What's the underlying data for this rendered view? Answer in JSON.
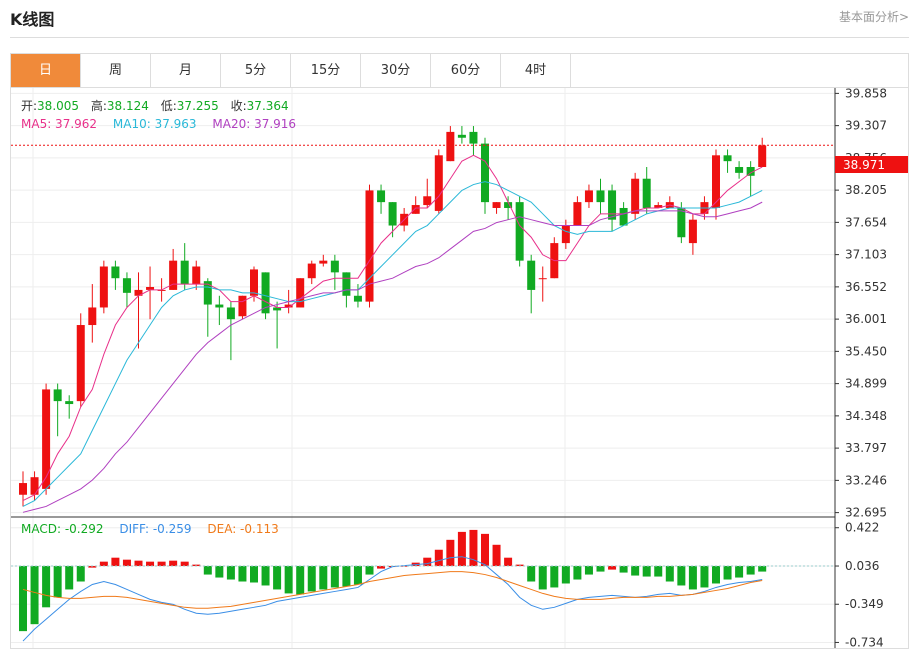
{
  "header": {
    "title": "K线图",
    "link": "基本面分析>"
  },
  "tabs": [
    "日",
    "周",
    "月",
    "5分",
    "15分",
    "30分",
    "60分",
    "4时"
  ],
  "active_tab": 0,
  "colors": {
    "up": "#ee1111",
    "down": "#11aa22",
    "ma5": "#e8308a",
    "ma10": "#2ab8d8",
    "ma20": "#b040c0",
    "diff": "#3a8ee6",
    "dea": "#f07a1a",
    "price_line": "#ee1111"
  },
  "ohlc_info": {
    "open_label": "开:",
    "open": "38.005",
    "high_label": "高:",
    "high": "38.124",
    "low_label": "低:",
    "low": "37.255",
    "close_label": "收:",
    "close": "37.364"
  },
  "ma_info": {
    "ma5": "MA5: 37.962",
    "ma10": "MA10: 37.963",
    "ma20": "MA20: 37.916"
  },
  "macd_info": {
    "macd": "MACD: -0.292",
    "diff": "DIFF: -0.259",
    "dea": "DEA: -0.113"
  },
  "current_price": "38.971",
  "chart_data": {
    "type": "candlestick",
    "price_axis": {
      "ticks": [
        "39.858",
        "39.307",
        "38.756",
        "38.205",
        "37.654",
        "37.103",
        "36.552",
        "36.001",
        "35.450",
        "34.899",
        "34.348",
        "33.797",
        "33.246",
        "32.695"
      ],
      "ylim": [
        32.62,
        39.95
      ]
    },
    "macd_axis": {
      "ticks": [
        "0.422",
        "0.036",
        "-0.349",
        "-0.734"
      ],
      "ylim": [
        -0.79,
        0.53
      ]
    },
    "candles": [
      [
        33.0,
        33.2,
        32.8,
        33.4
      ],
      [
        33.0,
        33.3,
        32.9,
        33.4
      ],
      [
        33.1,
        34.8,
        33.0,
        34.9
      ],
      [
        34.8,
        34.6,
        34.0,
        34.9
      ],
      [
        34.6,
        34.55,
        34.3,
        34.7
      ],
      [
        34.6,
        35.9,
        34.5,
        36.1
      ],
      [
        35.9,
        36.2,
        35.6,
        36.6
      ],
      [
        36.2,
        36.9,
        36.1,
        37.0
      ],
      [
        36.9,
        36.7,
        36.5,
        37.0
      ],
      [
        36.7,
        36.45,
        36.2,
        36.8
      ],
      [
        36.4,
        36.5,
        35.5,
        36.8
      ],
      [
        36.5,
        36.55,
        36.0,
        36.9
      ],
      [
        36.5,
        36.5,
        36.3,
        36.7
      ],
      [
        36.5,
        37.0,
        36.5,
        37.2
      ],
      [
        37.0,
        36.6,
        36.5,
        37.3
      ],
      [
        36.6,
        36.9,
        36.5,
        37.0
      ],
      [
        36.65,
        36.25,
        35.7,
        36.7
      ],
      [
        36.25,
        36.2,
        35.9,
        36.4
      ],
      [
        36.2,
        36.0,
        35.3,
        36.3
      ],
      [
        36.05,
        36.4,
        36.0,
        36.4
      ],
      [
        36.4,
        36.85,
        36.3,
        36.9
      ],
      [
        36.8,
        36.1,
        36.0,
        36.8
      ],
      [
        36.2,
        36.15,
        35.5,
        36.3
      ],
      [
        36.2,
        36.25,
        36.1,
        36.5
      ],
      [
        36.2,
        36.7,
        36.2,
        36.7
      ],
      [
        36.7,
        36.95,
        36.6,
        37.0
      ],
      [
        36.95,
        37.0,
        36.9,
        37.1
      ],
      [
        37.0,
        36.8,
        36.5,
        37.1
      ],
      [
        36.8,
        36.4,
        36.2,
        36.8
      ],
      [
        36.4,
        36.3,
        36.2,
        36.6
      ],
      [
        36.3,
        38.2,
        36.2,
        38.3
      ],
      [
        38.2,
        38.0,
        37.8,
        38.3
      ],
      [
        38.0,
        37.6,
        37.4,
        38.0
      ],
      [
        37.6,
        37.8,
        37.5,
        37.9
      ],
      [
        37.8,
        37.95,
        37.8,
        38.1
      ],
      [
        37.95,
        38.1,
        37.9,
        38.4
      ],
      [
        37.85,
        38.8,
        37.8,
        38.9
      ],
      [
        38.7,
        39.2,
        38.7,
        39.3
      ],
      [
        39.15,
        39.1,
        39.0,
        39.3
      ],
      [
        39.2,
        39.0,
        38.8,
        39.3
      ],
      [
        39.0,
        38.0,
        37.8,
        39.1
      ],
      [
        37.9,
        38.0,
        37.8,
        38.0
      ],
      [
        38.0,
        37.9,
        37.7,
        38.1
      ],
      [
        38.0,
        37.0,
        36.9,
        38.1
      ],
      [
        37.0,
        36.5,
        36.1,
        37.1
      ],
      [
        36.7,
        36.7,
        36.3,
        36.9
      ],
      [
        36.7,
        37.3,
        36.7,
        37.4
      ],
      [
        37.3,
        37.6,
        37.2,
        37.7
      ],
      [
        37.6,
        38.0,
        37.6,
        38.1
      ],
      [
        38.0,
        38.2,
        37.9,
        38.3
      ],
      [
        38.2,
        38.0,
        37.8,
        38.4
      ],
      [
        38.2,
        37.7,
        37.5,
        38.3
      ],
      [
        37.9,
        37.6,
        37.6,
        38.0
      ],
      [
        37.8,
        38.4,
        37.7,
        38.5
      ],
      [
        38.4,
        37.9,
        37.8,
        38.6
      ],
      [
        37.9,
        37.95,
        37.9,
        38.0
      ],
      [
        37.9,
        38.0,
        37.9,
        38.1
      ],
      [
        37.9,
        37.4,
        37.3,
        38.0
      ],
      [
        37.3,
        37.7,
        37.1,
        37.8
      ],
      [
        37.8,
        38.0,
        37.7,
        38.1
      ],
      [
        37.9,
        38.8,
        37.7,
        38.9
      ],
      [
        38.8,
        38.7,
        38.5,
        38.9
      ],
      [
        38.6,
        38.5,
        38.4,
        38.7
      ],
      [
        38.6,
        38.45,
        38.1,
        38.7
      ],
      [
        38.6,
        38.97,
        38.6,
        39.1
      ]
    ],
    "ma5": [
      32.9,
      33.0,
      33.3,
      33.7,
      34.0,
      34.5,
      34.8,
      35.4,
      35.9,
      36.2,
      36.4,
      36.5,
      36.5,
      36.6,
      36.6,
      36.6,
      36.6,
      36.5,
      36.3,
      36.3,
      36.4,
      36.3,
      36.2,
      36.2,
      36.35,
      36.5,
      36.65,
      36.7,
      36.7,
      36.7,
      37.0,
      37.3,
      37.5,
      37.7,
      37.9,
      37.9,
      38.1,
      38.4,
      38.7,
      38.8,
      38.7,
      38.4,
      38.0,
      37.6,
      37.4,
      37.1,
      37.0,
      37.0,
      37.3,
      37.6,
      37.8,
      37.8,
      37.8,
      37.85,
      37.9,
      37.9,
      37.95,
      37.9,
      37.8,
      37.8,
      38.0,
      38.2,
      38.35,
      38.5,
      38.6
    ],
    "ma10": [
      32.8,
      32.9,
      33.1,
      33.3,
      33.5,
      33.7,
      34.1,
      34.5,
      34.9,
      35.3,
      35.6,
      35.9,
      36.2,
      36.4,
      36.5,
      36.55,
      36.55,
      36.5,
      36.5,
      36.45,
      36.45,
      36.4,
      36.35,
      36.3,
      36.3,
      36.35,
      36.4,
      36.45,
      36.5,
      36.5,
      36.7,
      36.9,
      37.1,
      37.3,
      37.5,
      37.6,
      37.8,
      38.0,
      38.2,
      38.3,
      38.35,
      38.3,
      38.2,
      38.1,
      38.0,
      37.8,
      37.6,
      37.5,
      37.45,
      37.5,
      37.5,
      37.5,
      37.6,
      37.7,
      37.8,
      37.85,
      37.9,
      37.9,
      37.9,
      37.9,
      37.9,
      37.95,
      38.0,
      38.1,
      38.2
    ],
    "ma20": [
      32.7,
      32.75,
      32.8,
      32.9,
      33.0,
      33.1,
      33.25,
      33.45,
      33.7,
      33.9,
      34.15,
      34.4,
      34.65,
      34.9,
      35.15,
      35.4,
      35.6,
      35.75,
      35.9,
      36.0,
      36.1,
      36.2,
      36.25,
      36.3,
      36.35,
      36.4,
      36.45,
      36.45,
      36.5,
      36.5,
      36.6,
      36.65,
      36.7,
      36.8,
      36.9,
      36.95,
      37.05,
      37.2,
      37.35,
      37.5,
      37.55,
      37.65,
      37.7,
      37.75,
      37.7,
      37.65,
      37.6,
      37.6,
      37.6,
      37.6,
      37.7,
      37.75,
      37.8,
      37.85,
      37.85,
      37.85,
      37.85,
      37.85,
      37.8,
      37.75,
      37.75,
      37.8,
      37.85,
      37.9,
      38.0
    ],
    "macd": [
      -0.62,
      -0.55,
      -0.38,
      -0.28,
      -0.2,
      -0.12,
      0.02,
      0.08,
      0.12,
      0.1,
      0.09,
      0.08,
      0.08,
      0.09,
      0.08,
      0.05,
      -0.05,
      -0.08,
      -0.1,
      -0.12,
      -0.13,
      -0.16,
      -0.2,
      -0.24,
      -0.25,
      -0.22,
      -0.2,
      -0.18,
      -0.17,
      -0.15,
      -0.05,
      0.01,
      0.03,
      0.04,
      0.07,
      0.12,
      0.2,
      0.3,
      0.38,
      0.4,
      0.36,
      0.25,
      0.12,
      0.05,
      -0.12,
      -0.2,
      -0.18,
      -0.14,
      -0.1,
      -0.05,
      -0.02,
      0.0,
      -0.03,
      -0.06,
      -0.07,
      -0.07,
      -0.12,
      -0.16,
      -0.2,
      -0.18,
      -0.14,
      -0.1,
      -0.08,
      -0.05,
      -0.02
    ],
    "diff": [
      -0.72,
      -0.6,
      -0.5,
      -0.4,
      -0.3,
      -0.22,
      -0.15,
      -0.12,
      -0.15,
      -0.2,
      -0.25,
      -0.3,
      -0.33,
      -0.35,
      -0.4,
      -0.44,
      -0.45,
      -0.44,
      -0.42,
      -0.4,
      -0.38,
      -0.36,
      -0.32,
      -0.3,
      -0.28,
      -0.26,
      -0.24,
      -0.22,
      -0.2,
      -0.18,
      -0.1,
      -0.02,
      0.03,
      0.04,
      0.05,
      0.06,
      0.09,
      0.12,
      0.13,
      0.1,
      0.05,
      -0.05,
      -0.15,
      -0.28,
      -0.36,
      -0.4,
      -0.38,
      -0.34,
      -0.3,
      -0.28,
      -0.27,
      -0.26,
      -0.27,
      -0.28,
      -0.27,
      -0.25,
      -0.24,
      -0.26,
      -0.25,
      -0.22,
      -0.18,
      -0.15,
      -0.13,
      -0.12,
      -0.1
    ],
    "dea": [
      -0.2,
      -0.23,
      -0.26,
      -0.28,
      -0.29,
      -0.29,
      -0.28,
      -0.27,
      -0.27,
      -0.28,
      -0.3,
      -0.32,
      -0.34,
      -0.36,
      -0.38,
      -0.39,
      -0.39,
      -0.38,
      -0.37,
      -0.35,
      -0.33,
      -0.31,
      -0.29,
      -0.27,
      -0.25,
      -0.23,
      -0.21,
      -0.19,
      -0.17,
      -0.15,
      -0.12,
      -0.1,
      -0.08,
      -0.06,
      -0.05,
      -0.04,
      -0.03,
      -0.02,
      -0.02,
      -0.03,
      -0.05,
      -0.08,
      -0.12,
      -0.16,
      -0.2,
      -0.24,
      -0.27,
      -0.29,
      -0.3,
      -0.3,
      -0.3,
      -0.29,
      -0.28,
      -0.28,
      -0.28,
      -0.27,
      -0.27,
      -0.26,
      -0.25,
      -0.23,
      -0.21,
      -0.19,
      -0.16,
      -0.13,
      -0.11
    ]
  }
}
